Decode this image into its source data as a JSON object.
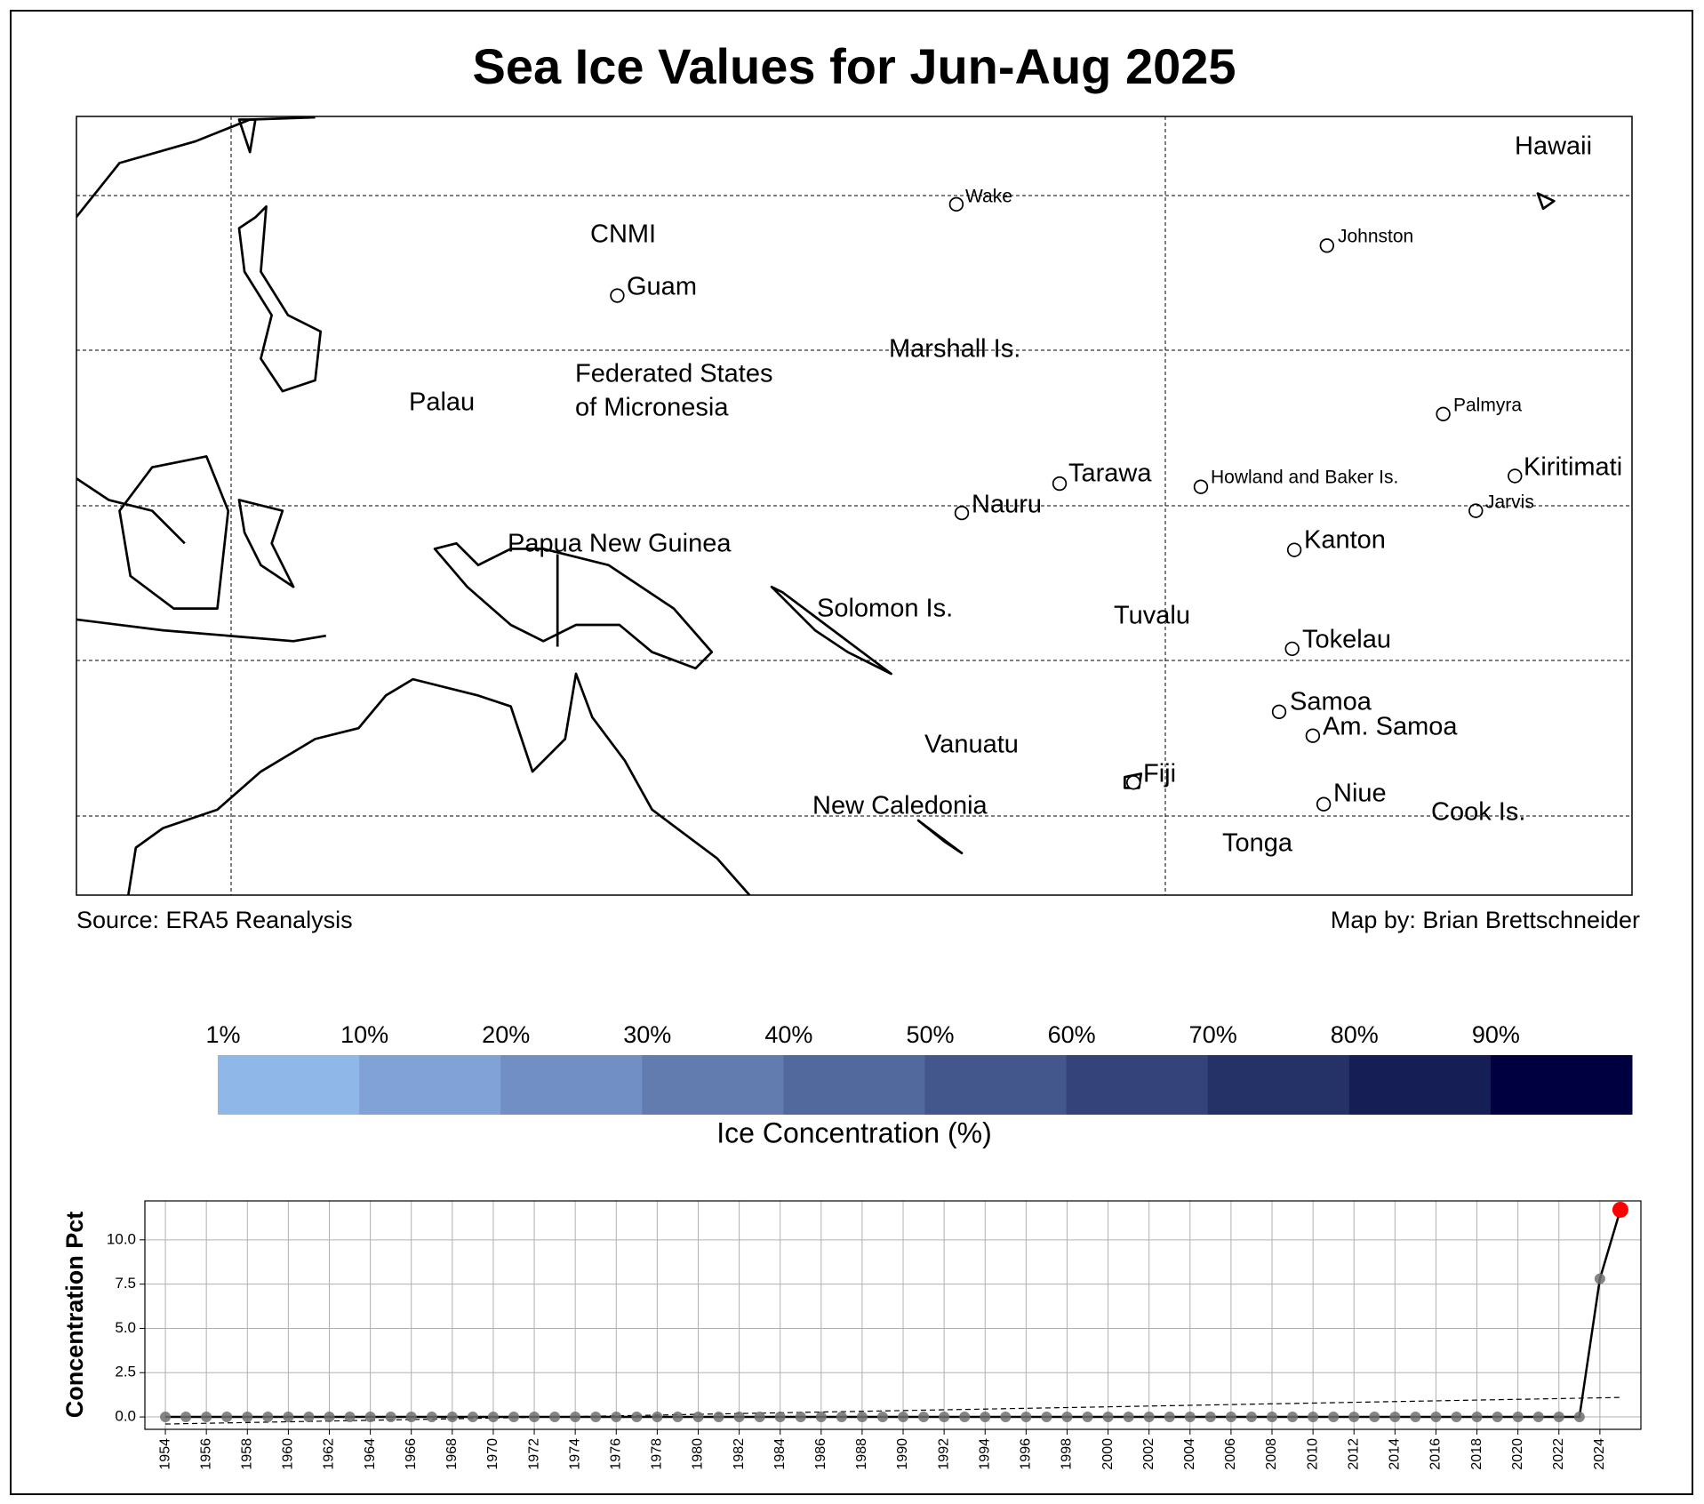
{
  "title": "Sea Ice Values for Jun-Aug 2025",
  "map": {
    "labels": [
      "Hawaii",
      "Wake",
      "CNMI",
      "Guam",
      "Johnston",
      "Marshall Is.",
      "Federated States",
      "of Micronesia",
      "Palau",
      "Palmyra",
      "Kiritimati",
      "Tarawa",
      "Howland and Baker Is.",
      "Jarvis",
      "Nauru",
      "Kanton",
      "Papua New Guinea",
      "Solomon Is.",
      "Tuvalu",
      "Tokelau",
      "Samoa",
      "Am. Samoa",
      "Vanuatu",
      "Fiji",
      "Niue",
      "New Caledonia",
      "Cook Is.",
      "Tonga"
    ],
    "source": "Source: ERA5 Reanalysis",
    "credit": "Map by: Brian Brettschneider"
  },
  "colorbar": {
    "label": "Ice Concentration (%)",
    "ticks": [
      "1%",
      "10%",
      "20%",
      "30%",
      "40%",
      "50%",
      "60%",
      "70%",
      "80%",
      "90%"
    ],
    "colors": [
      "#8fb8e8",
      "#80a2d6",
      "#718fc4",
      "#627cb0",
      "#52699e",
      "#43578c",
      "#34447a",
      "#253268",
      "#161f55",
      "#000040"
    ]
  },
  "chart_data": {
    "type": "line",
    "ylabel": "Concentration Pct",
    "x": [
      1954,
      1955,
      1956,
      1957,
      1958,
      1959,
      1960,
      1961,
      1962,
      1963,
      1964,
      1965,
      1966,
      1967,
      1968,
      1969,
      1970,
      1971,
      1972,
      1973,
      1974,
      1975,
      1976,
      1977,
      1978,
      1979,
      1980,
      1981,
      1982,
      1983,
      1984,
      1985,
      1986,
      1987,
      1988,
      1989,
      1990,
      1991,
      1992,
      1993,
      1994,
      1995,
      1996,
      1997,
      1998,
      1999,
      2000,
      2001,
      2002,
      2003,
      2004,
      2005,
      2006,
      2007,
      2008,
      2009,
      2010,
      2011,
      2012,
      2013,
      2014,
      2015,
      2016,
      2017,
      2018,
      2019,
      2020,
      2021,
      2022,
      2023,
      2024,
      2025
    ],
    "values": [
      0,
      0,
      0,
      0,
      0,
      0,
      0,
      0,
      0,
      0,
      0,
      0,
      0,
      0,
      0,
      0,
      0,
      0,
      0,
      0,
      0,
      0,
      0,
      0,
      0,
      0,
      0,
      0,
      0,
      0,
      0,
      0,
      0,
      0,
      0,
      0,
      0,
      0,
      0,
      0,
      0,
      0,
      0,
      0,
      0,
      0,
      0,
      0,
      0,
      0,
      0,
      0,
      0,
      0,
      0,
      0,
      0,
      0,
      0,
      0,
      0,
      0,
      0,
      0,
      0,
      0,
      0,
      0,
      0,
      0,
      7.8,
      11.7
    ],
    "color": "#000000",
    "marker_color": "#707070",
    "highlight_color": "#ff0000",
    "trend": {
      "x": [
        1954,
        2025
      ],
      "values": [
        -0.4,
        1.1
      ]
    },
    "xlim": [
      1953,
      2026
    ],
    "ylim": [
      -0.7,
      12.2
    ],
    "xticks": [
      1954,
      1956,
      1958,
      1960,
      1962,
      1964,
      1966,
      1968,
      1970,
      1972,
      1974,
      1976,
      1978,
      1980,
      1982,
      1984,
      1986,
      1988,
      1990,
      1992,
      1994,
      1996,
      1998,
      2000,
      2002,
      2004,
      2006,
      2008,
      2010,
      2012,
      2014,
      2016,
      2018,
      2020,
      2022,
      2024
    ],
    "yticks": [
      {
        "value": 0,
        "label": "0.0"
      },
      {
        "value": 2.5,
        "label": "2.5"
      },
      {
        "value": 5,
        "label": "5.0"
      },
      {
        "value": 7.5,
        "label": "7.5"
      },
      {
        "value": 10,
        "label": "10.0"
      }
    ],
    "grid": true
  }
}
